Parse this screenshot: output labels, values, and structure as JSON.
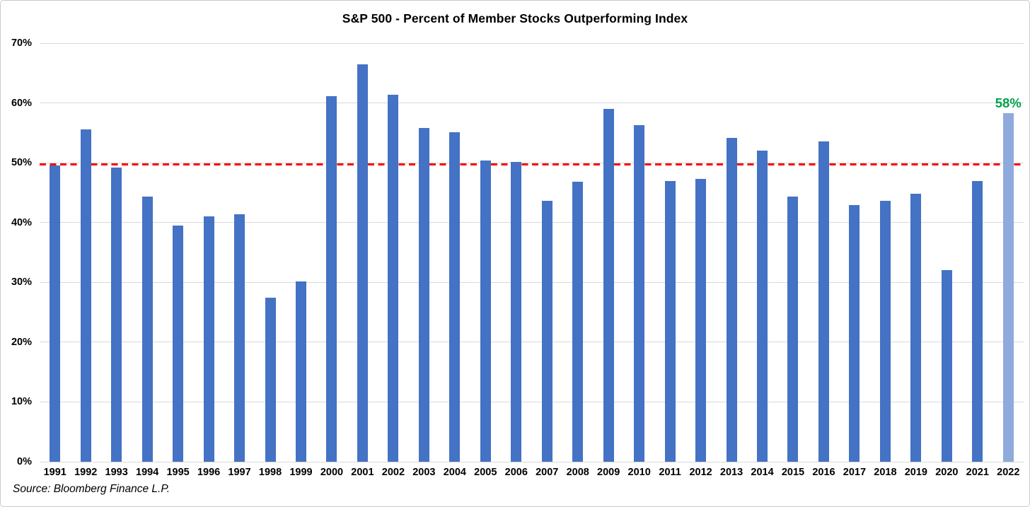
{
  "source": "Source: Bloomberg Finance L.P.",
  "chart_data": {
    "type": "bar",
    "title": "S&P 500 - Percent of Member Stocks Outperforming Index",
    "xlabel": "",
    "ylabel": "",
    "ylim": [
      0,
      70
    ],
    "y_ticks": [
      0,
      10,
      20,
      30,
      40,
      50,
      60,
      70
    ],
    "y_tick_labels": [
      "0%",
      "10%",
      "20%",
      "30%",
      "40%",
      "50%",
      "60%",
      "70%"
    ],
    "grid": "horizontal",
    "legend": "none",
    "bar_color": "#4472c4",
    "grid_color": "#d9d9d9",
    "categories": [
      "1991",
      "1992",
      "1993",
      "1994",
      "1995",
      "1996",
      "1997",
      "1998",
      "1999",
      "2000",
      "2001",
      "2002",
      "2003",
      "2004",
      "2005",
      "2006",
      "2007",
      "2008",
      "2009",
      "2010",
      "2011",
      "2012",
      "2013",
      "2014",
      "2015",
      "2016",
      "2017",
      "2018",
      "2019",
      "2020",
      "2021",
      "2022"
    ],
    "values": [
      49.5,
      55.6,
      49.2,
      44.3,
      39.5,
      41.0,
      41.4,
      27.4,
      30.2,
      61.1,
      66.5,
      61.4,
      55.8,
      55.1,
      50.4,
      50.1,
      43.6,
      46.8,
      59.0,
      56.3,
      47.0,
      47.3,
      54.1,
      52.0,
      44.4,
      53.6,
      42.9,
      43.6,
      44.8,
      32.1,
      47.0,
      58.3
    ],
    "average_line": {
      "value": 49.7,
      "color": "#ff0000",
      "style": "dashed"
    },
    "highlight": {
      "category": "2022",
      "bar_color": "#8faadc",
      "label": "58%",
      "label_color": "#00a14b"
    }
  }
}
